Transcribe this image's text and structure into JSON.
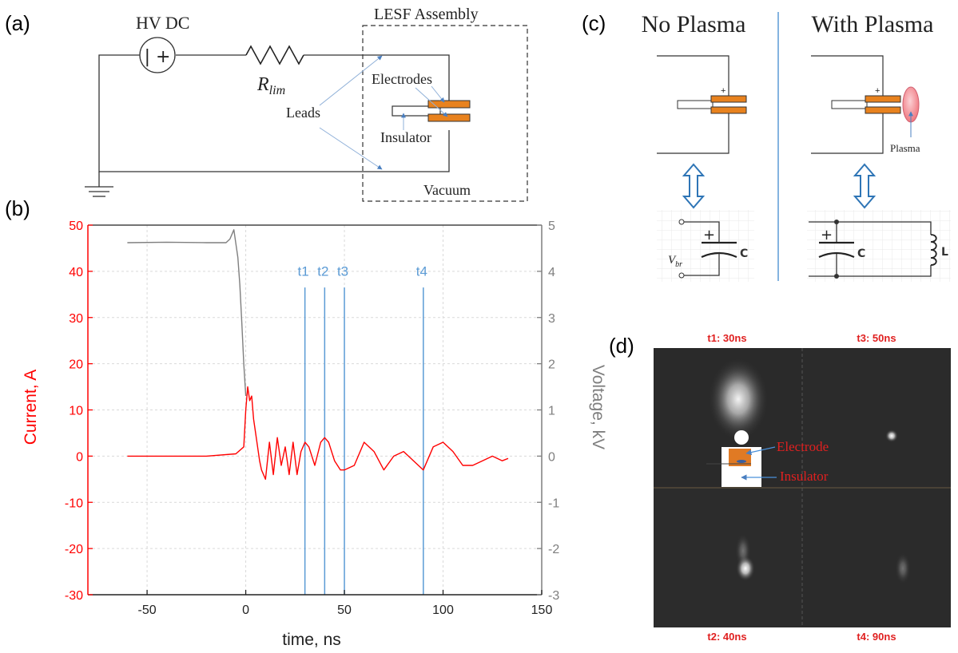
{
  "panel_labels": {
    "a": "(a)",
    "b": "(b)",
    "c": "(c)",
    "d": "(d)"
  },
  "circuit": {
    "source_label": "HV DC",
    "source_symbol": "| +",
    "resistor_label": "R",
    "resistor_subscript": "lim",
    "assembly_label": "LESF Assembly",
    "electrodes_label": "Electrodes",
    "leads_label": "Leads",
    "insulator_label": "Insulator",
    "vacuum_label": "Vacuum"
  },
  "chart_data": {
    "type": "line",
    "xlabel": "time, ns",
    "ylabel_left": "Current, A",
    "ylabel_right": "Voltage, kV",
    "xlim": [
      -80,
      150
    ],
    "ylim_left": [
      -30,
      50
    ],
    "ylim_right": [
      -3,
      5
    ],
    "x_ticks": [
      -50,
      0,
      50,
      100,
      150
    ],
    "y_ticks_left": [
      50,
      40,
      30,
      20,
      10,
      0,
      -10,
      -20,
      -30
    ],
    "y_ticks_right": [
      5,
      4,
      3,
      2,
      1,
      0,
      -1,
      -2,
      -3
    ],
    "grid": true,
    "markers": [
      {
        "label": "t1",
        "x": 30
      },
      {
        "label": "t2",
        "x": 40
      },
      {
        "label": "t3",
        "x": 50
      },
      {
        "label": "t4",
        "x": 90
      }
    ],
    "series": [
      {
        "axis": "right",
        "color": "#7f7f7f",
        "x": [
          -60,
          -40,
          -20,
          -10,
          -8,
          -6,
          -5,
          -4,
          -3,
          -2,
          -1,
          0
        ],
        "y": [
          4.62,
          4.63,
          4.62,
          4.62,
          4.7,
          4.9,
          4.6,
          4.3,
          3.7,
          2.9,
          2.0,
          1.3
        ]
      },
      {
        "axis": "left",
        "color": "#ff0000",
        "x": [
          -60,
          -40,
          -20,
          -5,
          -1,
          0,
          1,
          2,
          3,
          4,
          5,
          6,
          7,
          8,
          10,
          12,
          14,
          16,
          18,
          20,
          22,
          24,
          26,
          28,
          30,
          32,
          35,
          38,
          40,
          42,
          45,
          48,
          50,
          55,
          60,
          65,
          70,
          75,
          80,
          85,
          90,
          95,
          100,
          105,
          110,
          115,
          120,
          125,
          130,
          133
        ],
        "y": [
          0,
          0,
          0,
          0.5,
          2,
          10,
          15,
          12,
          13,
          8,
          5,
          2,
          -1,
          -3,
          -5,
          3,
          -4,
          4,
          -2,
          2,
          -4,
          3,
          -4,
          1,
          3,
          2,
          -2,
          3,
          4,
          3,
          -1,
          -3,
          -3,
          -2,
          3,
          1,
          -3,
          0,
          1,
          -1,
          -3,
          2,
          3,
          1,
          -2,
          -2,
          -1,
          0,
          -1,
          -0.5
        ]
      }
    ]
  },
  "comparison": {
    "left_title": "No Plasma",
    "right_title": "With Plasma",
    "plus_sign": "+",
    "plasma_label": "Plasma",
    "vbr_label": "V",
    "vbr_subscript": "br",
    "capacitor_label": "C",
    "inductor_label": "L"
  },
  "images": {
    "t1": "t1: 30ns",
    "t2": "t2: 40ns",
    "t3": "t3: 50ns",
    "t4": "t4: 90ns",
    "electrode_label": "Electrode",
    "insulator_label": "Insulator"
  },
  "colors": {
    "current": "#ff0000",
    "voltage": "#7f7f7f",
    "marker": "#5b9bd5",
    "electrode": "#e8821e",
    "plasma": "#f5a0a8",
    "arrow": "#2e75b6",
    "photo_bg": "#2a2a2a"
  }
}
